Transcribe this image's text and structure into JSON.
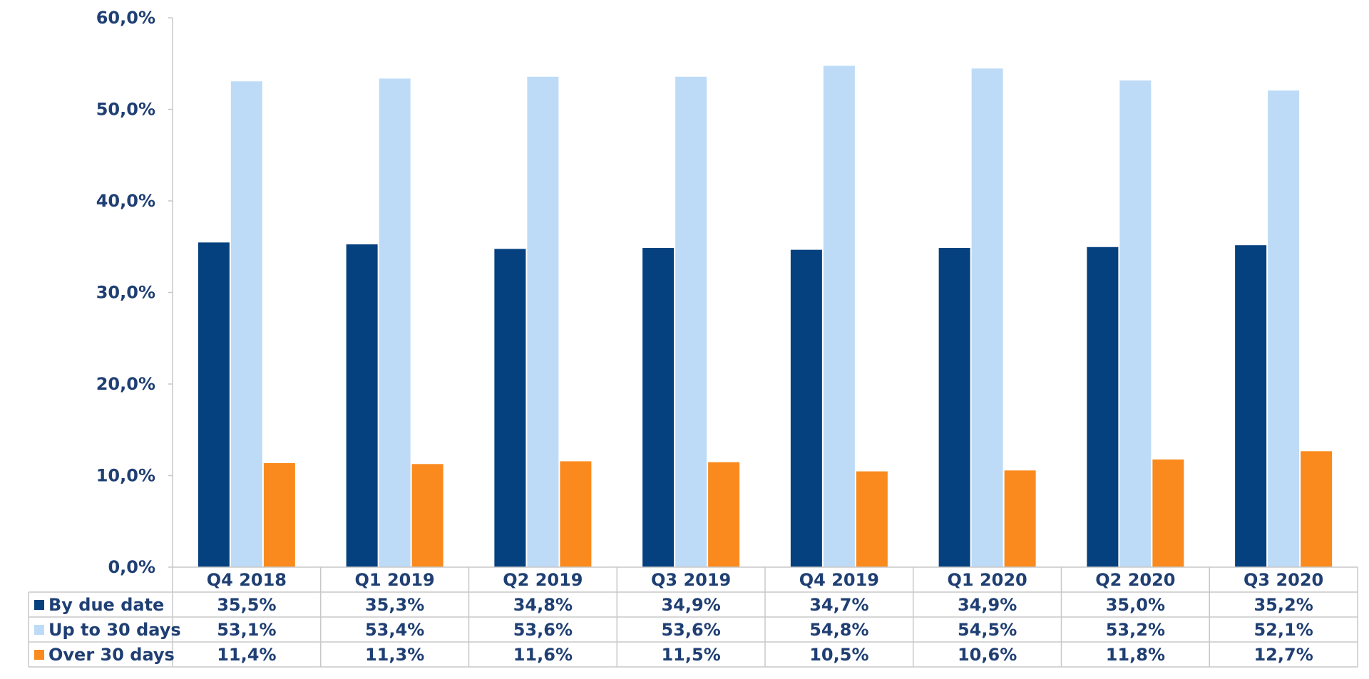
{
  "chart_data": {
    "type": "bar",
    "categories": [
      "Q4 2018",
      "Q1 2019",
      "Q2 2019",
      "Q3 2019",
      "Q4 2019",
      "Q1 2020",
      "Q2 2020",
      "Q3 2020"
    ],
    "series": [
      {
        "name": "By due date",
        "color": "#05407F",
        "values": [
          35.5,
          35.3,
          34.8,
          34.9,
          34.7,
          34.9,
          35.0,
          35.2
        ],
        "labels": [
          "35,5%",
          "35,3%",
          "34,8%",
          "34,9%",
          "34,7%",
          "34,9%",
          "35,0%",
          "35,2%"
        ]
      },
      {
        "name": "Up to 30 days",
        "color": "#BDDBF7",
        "values": [
          53.1,
          53.4,
          53.6,
          53.6,
          54.8,
          54.5,
          53.2,
          52.1
        ],
        "labels": [
          "53,1%",
          "53,4%",
          "53,6%",
          "53,6%",
          "54,8%",
          "54,5%",
          "53,2%",
          "52,1%"
        ]
      },
      {
        "name": "Over 30 days",
        "color": "#FA8A1E",
        "values": [
          11.4,
          11.3,
          11.6,
          11.5,
          10.5,
          10.6,
          11.8,
          12.7
        ],
        "labels": [
          "11,4%",
          "11,3%",
          "11,6%",
          "11,5%",
          "10,5%",
          "10,6%",
          "11,8%",
          "12,7%"
        ]
      }
    ],
    "yticks": [
      0,
      10,
      20,
      30,
      40,
      50,
      60
    ],
    "ytick_labels": [
      "0,0%",
      "10,0%",
      "20,0%",
      "30,0%",
      "40,0%",
      "50,0%",
      "60,0%"
    ],
    "ylim": [
      0,
      60
    ],
    "legend": "data-table-below",
    "grid": false
  }
}
